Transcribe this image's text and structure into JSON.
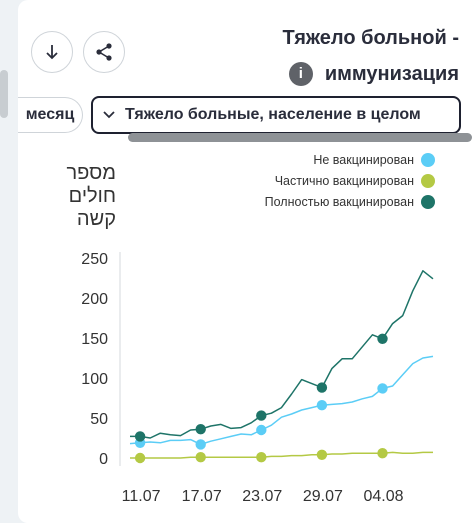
{
  "header": {
    "title_line1": "Тяжело больной -",
    "title_line2": "иммунизация",
    "info_glyph": "i"
  },
  "filters": {
    "period_chip": "месяц",
    "population_dropdown": "Тяжело больные, население в целом"
  },
  "icons": {
    "download": "download-icon",
    "share": "share-icon",
    "info": "info-icon",
    "chevron": "chevron-down-icon"
  },
  "chart_data": {
    "type": "line",
    "ylabel": "מספר חולים קשה",
    "xlabel": "",
    "x": [
      "10.07",
      "11.07",
      "12.07",
      "13.07",
      "14.07",
      "15.07",
      "16.07",
      "17.07",
      "18.07",
      "19.07",
      "20.07",
      "21.07",
      "22.07",
      "23.07",
      "24.07",
      "25.07",
      "26.07",
      "27.07",
      "28.07",
      "29.07",
      "30.07",
      "31.07",
      "01.08",
      "02.08",
      "03.08",
      "04.08",
      "05.08",
      "06.08",
      "07.08",
      "08.08",
      "09.08"
    ],
    "xticks": [
      "11.07",
      "17.07",
      "23.07",
      "29.07",
      "04.08"
    ],
    "yticks": [
      0,
      50,
      100,
      150,
      200,
      250
    ],
    "ylim": [
      0,
      250
    ],
    "grid": false,
    "legend_position": "top-right",
    "series": [
      {
        "name": "Не вакцинирован",
        "color": "#5bcdf6",
        "values": [
          18,
          19,
          20,
          19,
          22,
          22,
          23,
          17,
          21,
          24,
          27,
          30,
          29,
          35,
          41,
          51,
          55,
          60,
          63,
          66,
          67,
          68,
          70,
          74,
          77,
          87,
          90,
          104,
          118,
          125,
          127
        ],
        "markers": [
          1,
          7,
          13,
          19,
          25
        ]
      },
      {
        "name": "Частично вакцинирован",
        "color": "#b4c944",
        "values": [
          0,
          0,
          0,
          0,
          0,
          0,
          1,
          1,
          1,
          1,
          1,
          1,
          1,
          1,
          2,
          2,
          3,
          3,
          4,
          4,
          5,
          5,
          6,
          6,
          6,
          6,
          7,
          6,
          6,
          7,
          7
        ],
        "markers": [
          1,
          7,
          13,
          19,
          25
        ]
      },
      {
        "name": "Полностью вакцинирован",
        "color": "#1e7468",
        "values": [
          27,
          27,
          25,
          31,
          29,
          28,
          35,
          36,
          40,
          42,
          37,
          38,
          44,
          53,
          56,
          63,
          80,
          98,
          93,
          88,
          112,
          124,
          124,
          139,
          154,
          149,
          168,
          178,
          209,
          234,
          224
        ],
        "markers": [
          1,
          7,
          13,
          19,
          25
        ]
      }
    ]
  }
}
